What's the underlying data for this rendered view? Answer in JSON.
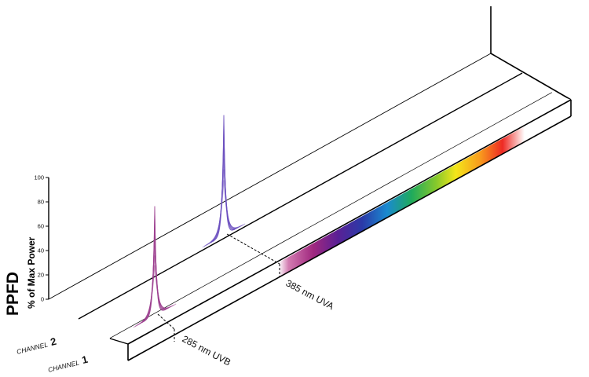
{
  "chart_data": {
    "type": "line",
    "title": "",
    "ylabel": "PPFD",
    "ylabel_sub": "% of Max Power",
    "ylim": [
      0,
      100
    ],
    "yticks": [
      "0",
      "20",
      "40",
      "60",
      "80",
      "100"
    ],
    "channels": [
      {
        "label": "CHANNEL",
        "number": "1"
      },
      {
        "label": "CHANNEL",
        "number": "2"
      }
    ],
    "series": [
      {
        "channel": "1",
        "peak_nm": 285,
        "peak_label": "285 nm UVB",
        "peak_value": 90,
        "color": "#9c3f8f"
      },
      {
        "channel": "2",
        "peak_nm": 385,
        "peak_label": "385 nm UVA",
        "peak_value": 99,
        "color": "#6b4fbf"
      }
    ],
    "spectrum_colors": [
      "#b0357f",
      "#7a1d8a",
      "#3b2aa0",
      "#1a76c7",
      "#23a35a",
      "#7cc62a",
      "#f2e21a",
      "#f7941d",
      "#ee2a24",
      "#ffffff"
    ],
    "grid": false
  }
}
